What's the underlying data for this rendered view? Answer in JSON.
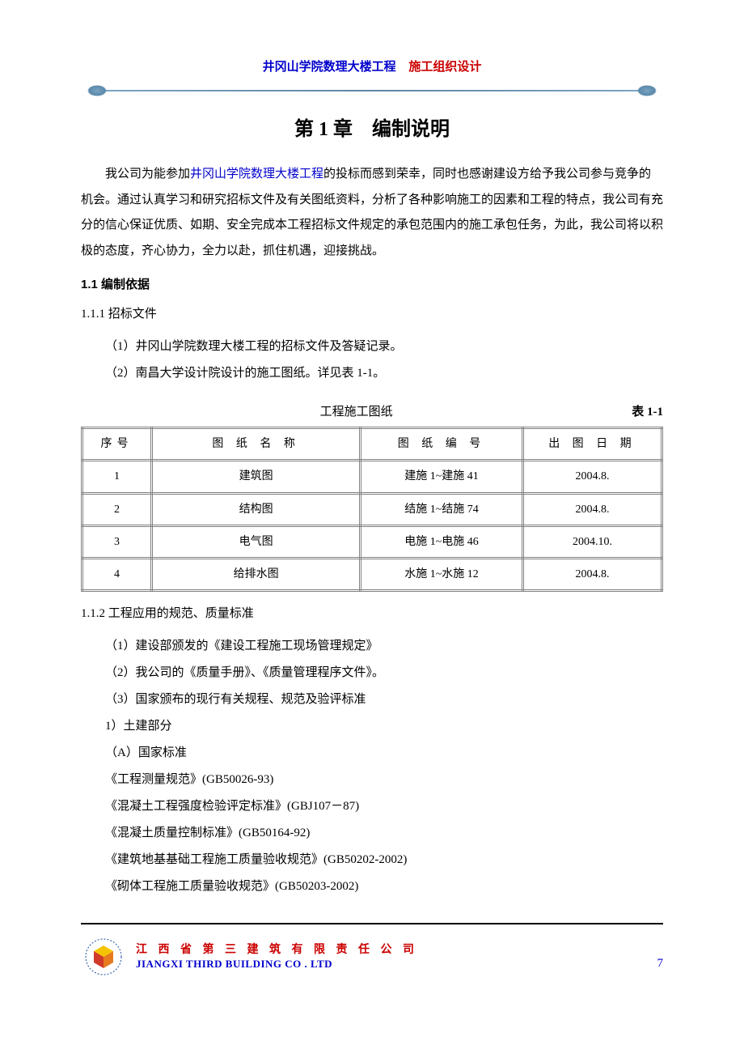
{
  "header": {
    "title_blue": "井冈山学院数理大楼工程",
    "title_red": "施工组织设计"
  },
  "chapter": {
    "title": "第 1 章　编制说明"
  },
  "intro": {
    "prefix": "我公司为能参加",
    "link": "井冈山学院数理大楼工程",
    "suffix": "的投标而感到荣幸，同时也感谢建设方给予我公司参与竞争的机会。通过认真学习和研究招标文件及有关图纸资料，分析了各种影响施工的因素和工程的特点，我公司有充分的信心保证优质、如期、安全完成本工程招标文件规定的承包范围内的施工承包任务，为此，我公司将以积极的态度，齐心协力，全力以赴，抓住机遇，迎接挑战。"
  },
  "sec1_1": {
    "heading": "1.1 编制依据"
  },
  "sec1_1_1": {
    "heading": "1.1.1 招标文件",
    "items": [
      "（1）井冈山学院数理大楼工程的招标文件及答疑记录。",
      "（2）南昌大学设计院设计的施工图纸。详见表 1-1。"
    ]
  },
  "table": {
    "caption_center": "工程施工图纸",
    "caption_right": "表 1-1",
    "columns": [
      "序号",
      "图 纸 名 称",
      "图 纸 编 号",
      "出 图 日 期"
    ],
    "col_widths": [
      "12%",
      "36%",
      "28%",
      "24%"
    ],
    "rows": [
      [
        "1",
        "建筑图",
        "建施 1~建施 41",
        "2004.8."
      ],
      [
        "2",
        "结构图",
        "结施 1~结施 74",
        "2004.8."
      ],
      [
        "3",
        "电气图",
        "电施 1~电施 46",
        "2004.10."
      ],
      [
        "4",
        "给排水图",
        "水施 1~水施 12",
        "2004.8."
      ]
    ]
  },
  "sec1_1_2": {
    "heading": "1.1.2 工程应用的规范、质量标准",
    "items": [
      "（1）建设部颁发的《建设工程施工现场管理规定》",
      "（2）我公司的《质量手册》、《质量管理程序文件》。",
      " （3）国家颁布的现行有关规程、规范及验评标准",
      "1）土建部分",
      "（A）国家标准",
      "《工程测量规范》(GB50026-93)",
      "《混凝土工程强度检验评定标准》(GBJ107－87)",
      "《混凝土质量控制标准》(GB50164-92)",
      "《建筑地基基础工程施工质量验收规范》(GB50202-2002)",
      "《砌体工程施工质量验收规范》(GB50203-2002)"
    ]
  },
  "footer": {
    "cn": "江 西 省 第 三 建 筑 有 限 责 任 公 司",
    "en": "JIANGXI THIRD BUILDING CO . LTD",
    "page": "7",
    "logo_colors": {
      "circle": "#1b4fa0",
      "cube_top": "#f5c400",
      "cube_left": "#d03a2a",
      "cube_right": "#e67a1f",
      "text": "#1b4fa0"
    }
  }
}
